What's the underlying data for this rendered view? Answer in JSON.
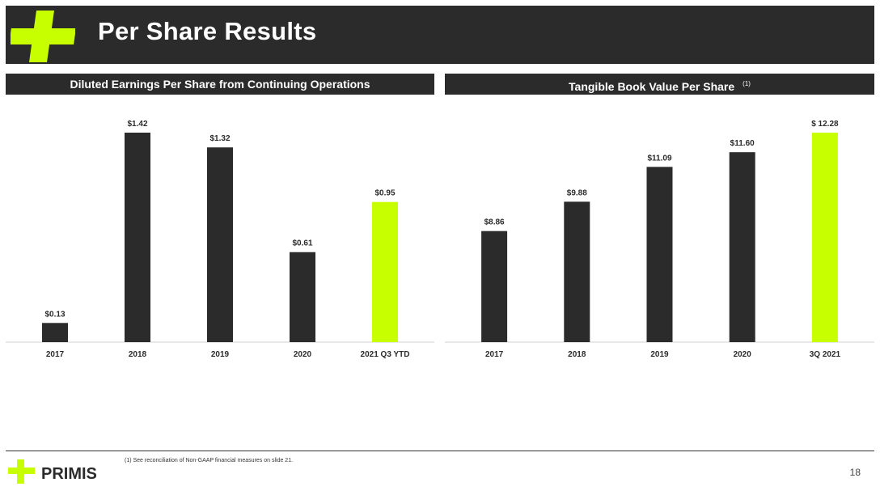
{
  "title": "Per Share Results",
  "brand": "PRIMIS",
  "colors": {
    "dark": "#2b2b2b",
    "accent": "#c8ff00"
  },
  "left_section": {
    "title": "Diluted Earnings Per Share from Continuing Operations"
  },
  "right_section": {
    "title": "Tangible Book Value Per Share",
    "note_marker": "(1)"
  },
  "footnote": "(1)  See reconciliation of Non-GAAP financial measures on slide 21.",
  "page_number": "18",
  "chart_data": [
    {
      "type": "bar",
      "title": "Diluted Earnings Per Share from Continuing Operations",
      "categories": [
        "2017",
        "2018",
        "2019",
        "2020",
        "2021 Q3 YTD"
      ],
      "values": [
        0.13,
        1.42,
        1.32,
        0.61,
        0.95
      ],
      "labels": [
        "$0.13",
        "$1.42",
        "$1.32",
        "$0.61",
        "$0.95"
      ],
      "highlight_index": 4,
      "ylim": [
        0,
        1.42
      ]
    },
    {
      "type": "bar",
      "title": "Tangible Book Value Per Share",
      "categories": [
        "2017",
        "2018",
        "2019",
        "2020",
        "3Q 2021"
      ],
      "values": [
        8.86,
        9.88,
        11.09,
        11.6,
        12.28
      ],
      "labels": [
        "$8.86",
        "$9.88",
        "$11.09",
        "$11.60",
        "$ 12.28"
      ],
      "highlight_index": 4,
      "ylim": [
        5.0,
        12.28
      ]
    }
  ]
}
